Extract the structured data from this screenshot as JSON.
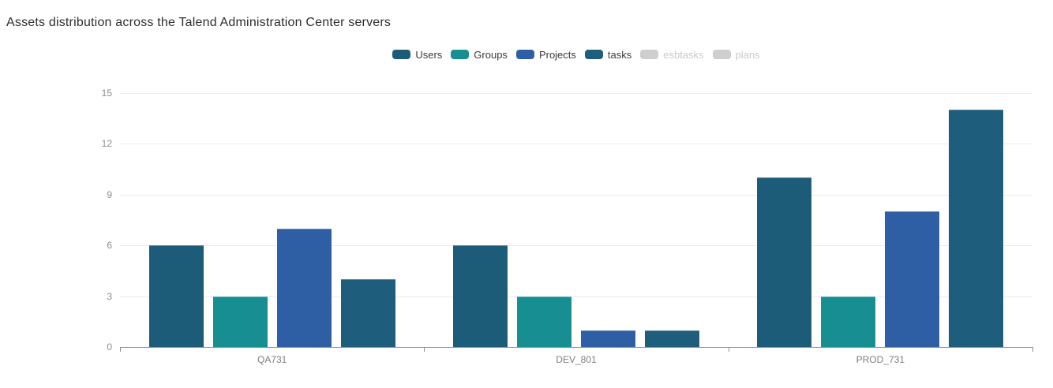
{
  "chart_data": {
    "type": "bar",
    "title": "Assets distribution across the Talend Administration Center servers",
    "categories": [
      "QA731",
      "DEV_801",
      "PROD_731"
    ],
    "series": [
      {
        "name": "Users",
        "color": "#1d5c78",
        "enabled": true,
        "values": [
          6,
          6,
          10
        ]
      },
      {
        "name": "Groups",
        "color": "#178f92",
        "enabled": true,
        "values": [
          3,
          3,
          3
        ]
      },
      {
        "name": "Projects",
        "color": "#2e5fa5",
        "enabled": true,
        "values": [
          7,
          1,
          8
        ]
      },
      {
        "name": "tasks",
        "color": "#1e5e7c",
        "enabled": true,
        "values": [
          4,
          1,
          14
        ]
      },
      {
        "name": "esbtasks",
        "color": "#cecece",
        "enabled": false,
        "values": []
      },
      {
        "name": "plans",
        "color": "#cecece",
        "enabled": false,
        "values": []
      }
    ],
    "yticks": [
      0,
      3,
      6,
      9,
      12,
      15
    ],
    "ylim": [
      0,
      15
    ],
    "xlabel": "",
    "ylabel": "",
    "grid": "horizontal",
    "legend_position": "top-center"
  },
  "colors": {
    "grid_line": "#e9eaf2",
    "axis_line": "#909090",
    "tick_label": "#8b8b8b",
    "category_label": "#7e7e7e",
    "title_text": "#2e2e2e",
    "legend_text": "#3a3a3a",
    "legend_disabled_text": "#c9c9c9"
  }
}
